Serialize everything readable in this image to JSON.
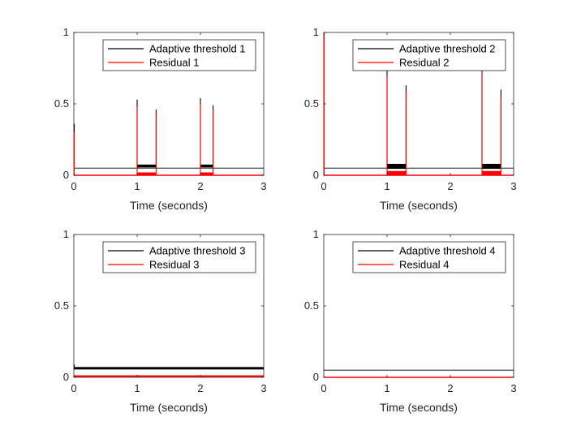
{
  "chart_data": [
    {
      "type": "line",
      "xlabel": "Time (seconds)",
      "xlim": [
        0,
        3
      ],
      "ylim": [
        0,
        1
      ],
      "xticks": [
        "0",
        "1",
        "2",
        "3"
      ],
      "yticks": [
        "0",
        "0.5",
        "1"
      ],
      "legend_position": "top-right",
      "series": [
        {
          "name": "Adaptive threshold 1",
          "color": "#000000",
          "segments": [
            [
              0,
              0.05
            ],
            [
              3,
              0.05
            ]
          ],
          "bands": [
            {
              "x": [
                1.0,
                1.3
              ],
              "y": [
                0.055,
                0.075
              ]
            },
            {
              "x": [
                2.0,
                2.2
              ],
              "y": [
                0.055,
                0.075
              ]
            }
          ],
          "spikes": [
            {
              "x": 0.0,
              "y": 0.36
            },
            {
              "x": 1.0,
              "y": 0.53
            },
            {
              "x": 1.3,
              "y": 0.46
            },
            {
              "x": 2.0,
              "y": 0.54
            },
            {
              "x": 2.2,
              "y": 0.49
            }
          ]
        },
        {
          "name": "Residual 1",
          "color": "#ff0000",
          "segments": [
            [
              0,
              0.0
            ],
            [
              3,
              0.0
            ]
          ],
          "bands": [
            {
              "x": [
                1.0,
                1.3
              ],
              "y": [
                0.0,
                0.02
              ]
            },
            {
              "x": [
                2.0,
                2.2
              ],
              "y": [
                0.0,
                0.02
              ]
            }
          ],
          "spikes": [
            {
              "x": 0.0,
              "y": 0.3
            },
            {
              "x": 1.0,
              "y": 0.48
            },
            {
              "x": 1.3,
              "y": 0.43
            },
            {
              "x": 2.0,
              "y": 0.5
            },
            {
              "x": 2.2,
              "y": 0.46
            }
          ]
        }
      ]
    },
    {
      "type": "line",
      "xlabel": "Time (seconds)",
      "xlim": [
        0,
        3
      ],
      "ylim": [
        0,
        1
      ],
      "xticks": [
        "0",
        "1",
        "2",
        "3"
      ],
      "yticks": [
        "0",
        "0.5",
        "1"
      ],
      "legend_position": "top-right",
      "series": [
        {
          "name": "Adaptive threshold 2",
          "color": "#000000",
          "segments": [
            [
              0,
              0.05
            ],
            [
              3,
              0.05
            ]
          ],
          "bands": [
            {
              "x": [
                1.0,
                1.3
              ],
              "y": [
                0.045,
                0.08
              ]
            },
            {
              "x": [
                2.5,
                2.8
              ],
              "y": [
                0.045,
                0.08
              ]
            }
          ],
          "spikes": [
            {
              "x": 0.0,
              "y": 1.0
            },
            {
              "x": 1.0,
              "y": 0.75
            },
            {
              "x": 1.3,
              "y": 0.63
            },
            {
              "x": 2.5,
              "y": 0.73
            },
            {
              "x": 2.8,
              "y": 0.6
            }
          ]
        },
        {
          "name": "Residual 2",
          "color": "#ff0000",
          "segments": [
            [
              0,
              0.0
            ],
            [
              3,
              0.0
            ]
          ],
          "bands": [
            {
              "x": [
                1.0,
                1.3
              ],
              "y": [
                0.0,
                0.03
              ]
            },
            {
              "x": [
                2.5,
                2.8
              ],
              "y": [
                0.0,
                0.03
              ]
            }
          ],
          "spikes": [
            {
              "x": 0.0,
              "y": 1.0
            },
            {
              "x": 1.0,
              "y": 0.7
            },
            {
              "x": 1.3,
              "y": 0.58
            },
            {
              "x": 2.5,
              "y": 0.72
            },
            {
              "x": 2.8,
              "y": 0.54
            }
          ]
        }
      ]
    },
    {
      "type": "line",
      "xlabel": "Time (seconds)",
      "xlim": [
        0,
        3
      ],
      "ylim": [
        0,
        1
      ],
      "xticks": [
        "0",
        "1",
        "2",
        "3"
      ],
      "yticks": [
        "0",
        "0.5",
        "1"
      ],
      "legend_position": "top-right",
      "series": [
        {
          "name": "Adaptive threshold 3",
          "color": "#000000",
          "segments": [
            [
              0,
              0.06
            ],
            [
              3,
              0.06
            ]
          ],
          "bands": [
            {
              "x": [
                0.0,
                3.0
              ],
              "y": [
                0.055,
                0.072
              ]
            }
          ],
          "spikes": [
            {
              "x": 0.0,
              "y": 0.09
            }
          ]
        },
        {
          "name": "Residual 3",
          "color": "#ff0000",
          "segments": [
            [
              0,
              0.008
            ],
            [
              3,
              0.008
            ]
          ],
          "bands": [
            {
              "x": [
                0.0,
                3.0
              ],
              "y": [
                0.002,
                0.014
              ]
            }
          ],
          "spikes": []
        }
      ]
    },
    {
      "type": "line",
      "xlabel": "Time (seconds)",
      "xlim": [
        0,
        3
      ],
      "ylim": [
        0,
        1
      ],
      "xticks": [
        "0",
        "1",
        "2",
        "3"
      ],
      "yticks": [
        "0",
        "0.5",
        "1"
      ],
      "legend_position": "top-right",
      "series": [
        {
          "name": "Adaptive threshold 4",
          "color": "#000000",
          "segments": [
            [
              0,
              0.05
            ],
            [
              3,
              0.05
            ]
          ],
          "bands": [],
          "spikes": []
        },
        {
          "name": "Residual 4",
          "color": "#ff0000",
          "segments": [
            [
              0,
              0.0
            ],
            [
              3,
              0.0
            ]
          ],
          "bands": [],
          "spikes": []
        }
      ]
    }
  ]
}
